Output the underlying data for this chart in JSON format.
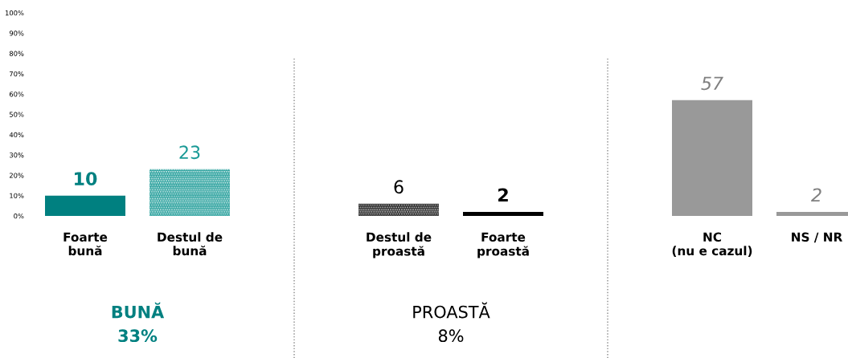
{
  "chart_data": {
    "type": "bar",
    "categories": [
      "Foarte\nbună",
      "Destul de\nbună",
      null,
      "Destul de\nproastă",
      "Foarte\nproastă",
      null,
      "NC\n(nu e cazul)",
      "NS / NR"
    ],
    "values": [
      10,
      23,
      null,
      6,
      2,
      null,
      57,
      2
    ],
    "colors": [
      "#008080",
      "#1a9a96",
      null,
      "#111111",
      "#000000",
      null,
      "#999999",
      "#999999"
    ],
    "ylim": [
      0,
      100
    ],
    "yticks": [
      {
        "value": 0,
        "label": "0%"
      },
      {
        "value": 10,
        "label": "10%"
      },
      {
        "value": 20,
        "label": "20%"
      },
      {
        "value": 30,
        "label": "30%"
      },
      {
        "value": 40,
        "label": "40%"
      },
      {
        "value": 50,
        "label": "50%"
      },
      {
        "value": 60,
        "label": "60%"
      },
      {
        "value": 70,
        "label": "70%"
      },
      {
        "value": 80,
        "label": "80%"
      },
      {
        "value": 90,
        "label": "90%"
      },
      {
        "value": 100,
        "label": "100%"
      }
    ],
    "data_labels": true,
    "annotations": [
      "BUNĂ\n33%",
      "PROASTĂ\n8%"
    ]
  }
}
